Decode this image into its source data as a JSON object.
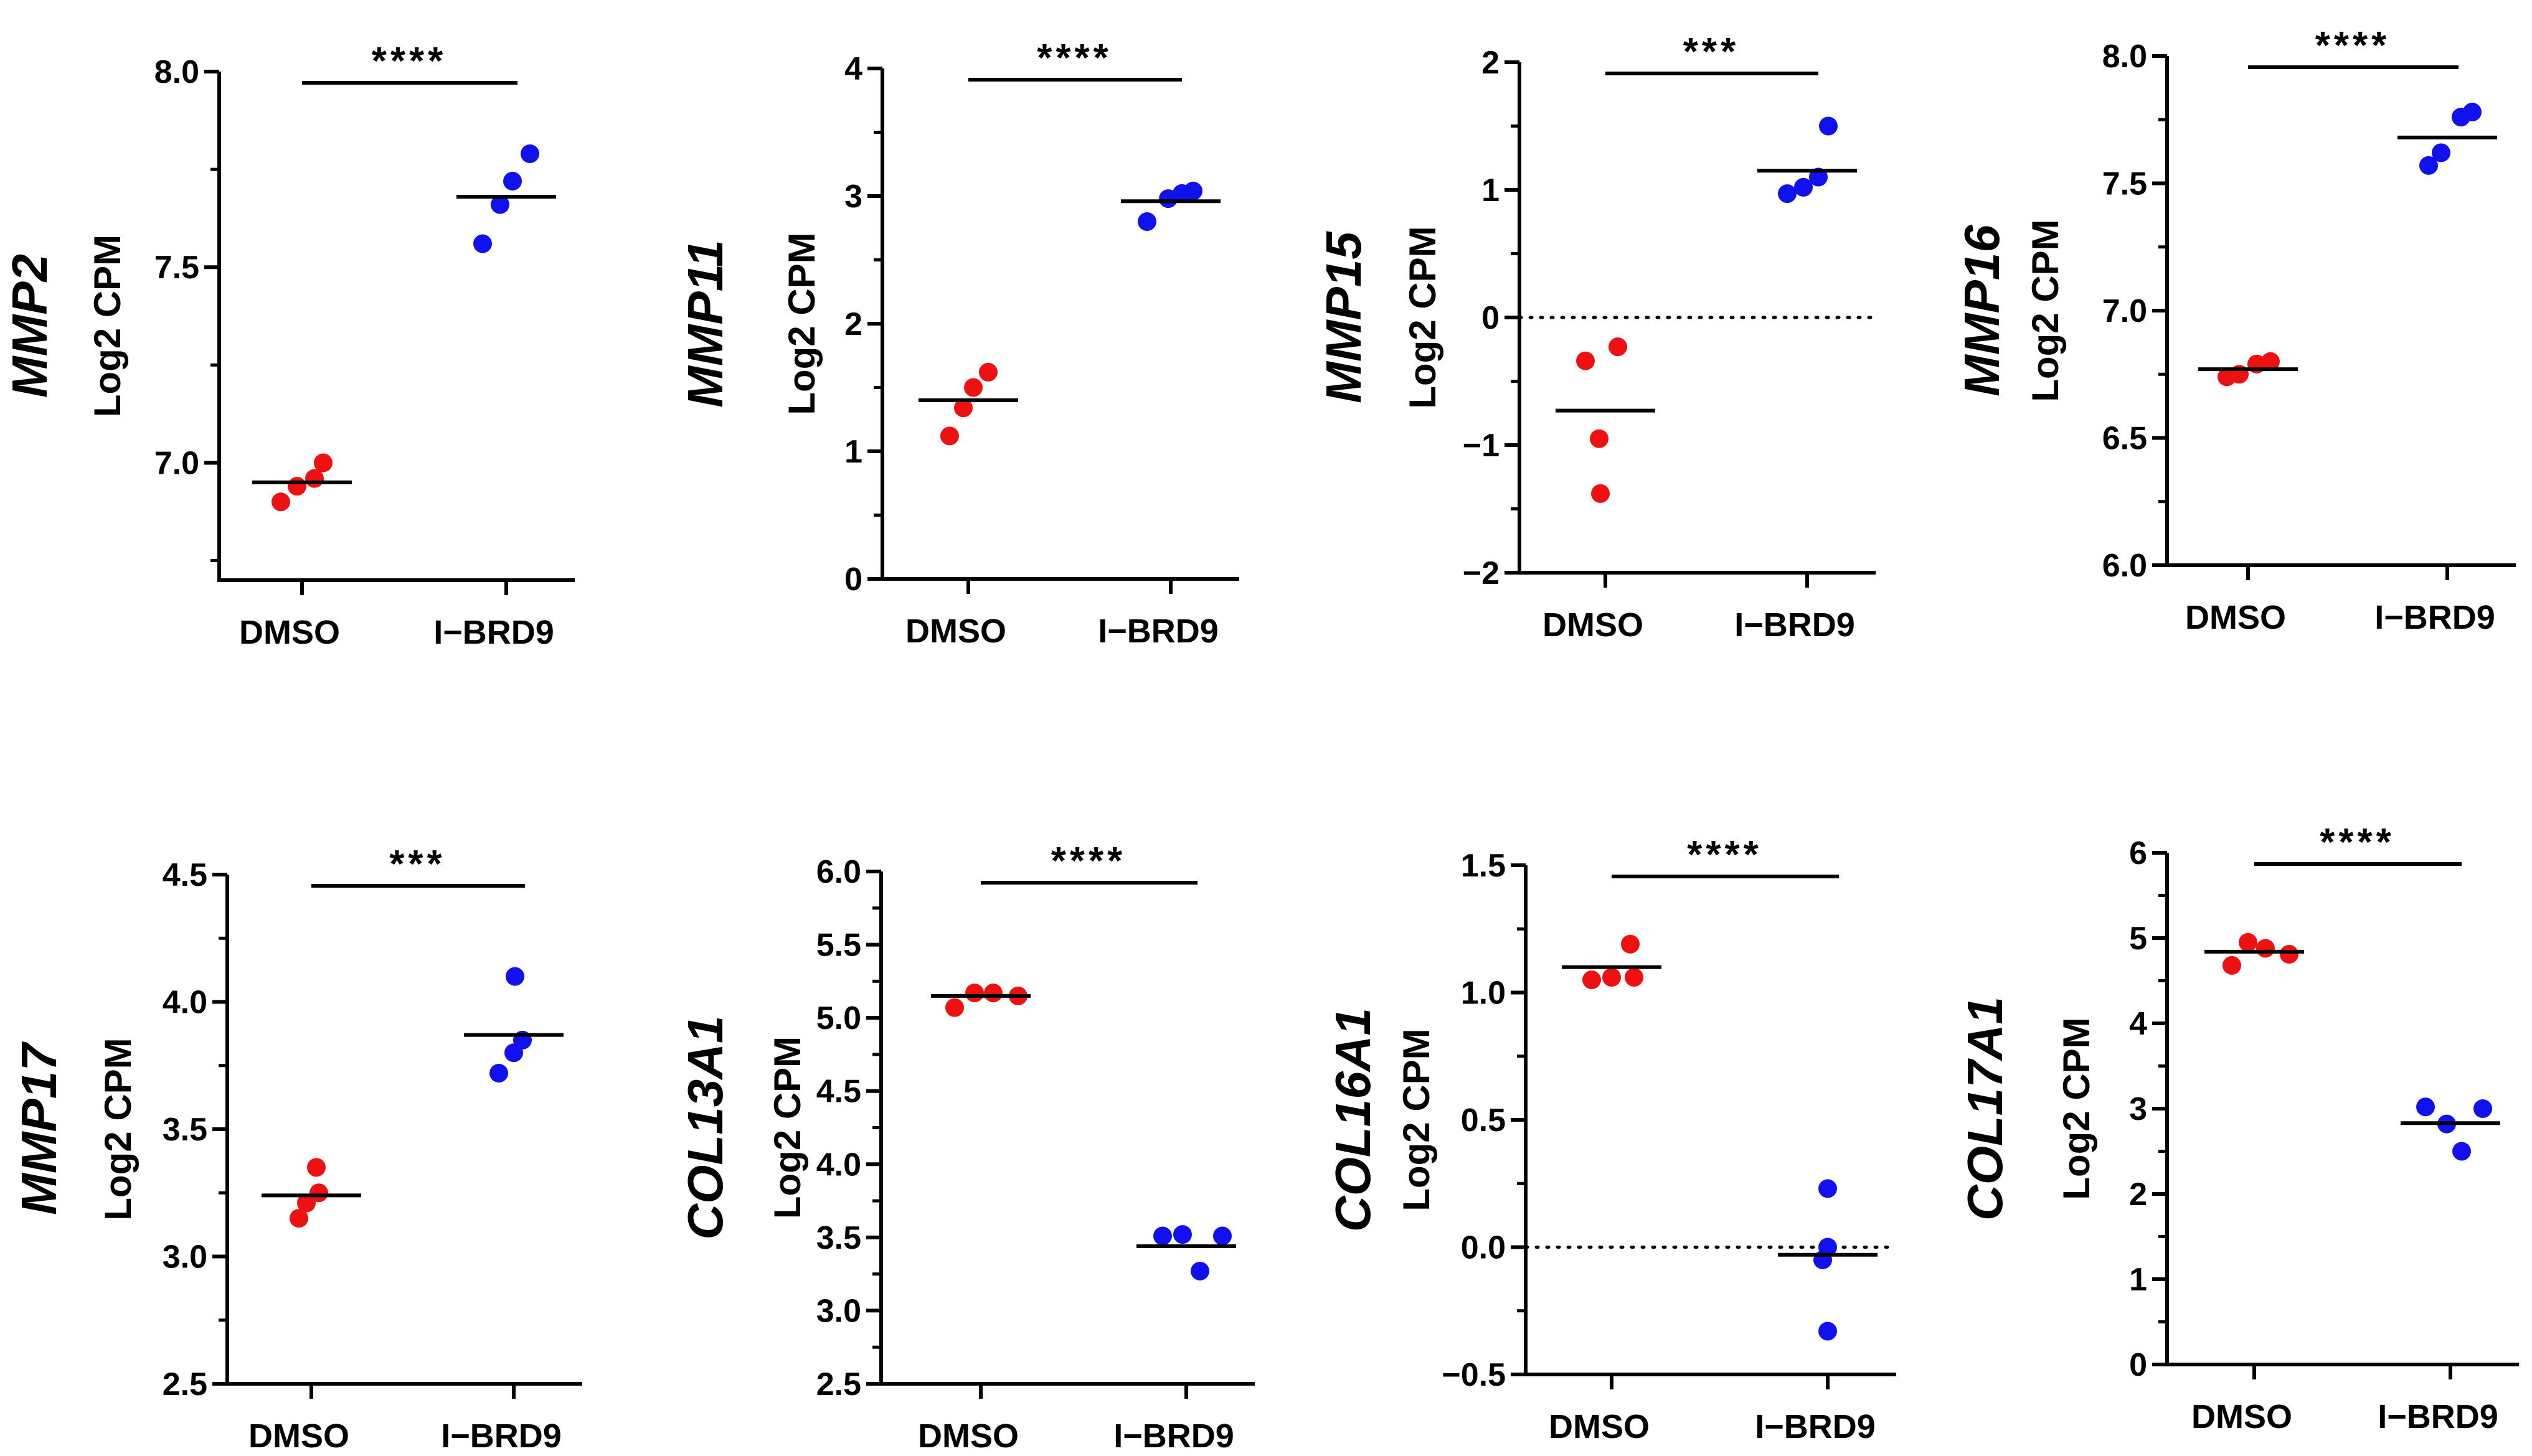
{
  "colors": {
    "dmso": "#ee1111",
    "ibrd9": "#1111ee",
    "axis": "#000000"
  },
  "chart_data": [
    {
      "type": "scatter",
      "gene": "MMP2",
      "ylabel": "Log2 CPM",
      "categories": [
        "DMSO",
        "I−BRD9"
      ],
      "ylim": [
        6.7,
        8.0
      ],
      "ticks": [
        7.0,
        7.5,
        8.0
      ],
      "tick_labels": [
        "7.0",
        "7.5",
        "8.0"
      ],
      "zero_line": false,
      "significance": "****",
      "series": [
        {
          "name": "DMSO",
          "values": [
            6.9,
            6.94,
            6.96,
            7.0
          ],
          "mean": 6.95
        },
        {
          "name": "I−BRD9",
          "values": [
            7.56,
            7.66,
            7.72,
            7.79
          ],
          "mean": 7.68
        }
      ]
    },
    {
      "type": "scatter",
      "gene": "MMP11",
      "ylabel": "Log2 CPM",
      "categories": [
        "DMSO",
        "I−BRD9"
      ],
      "ylim": [
        0,
        4
      ],
      "ticks": [
        0,
        1,
        2,
        3,
        4
      ],
      "tick_labels": [
        "0",
        "1",
        "2",
        "3",
        "4"
      ],
      "zero_line": false,
      "significance": "****",
      "series": [
        {
          "name": "DMSO",
          "values": [
            1.12,
            1.34,
            1.5,
            1.62
          ],
          "mean": 1.4
        },
        {
          "name": "I−BRD9",
          "values": [
            2.8,
            2.98,
            3.02,
            3.04
          ],
          "mean": 2.96
        }
      ]
    },
    {
      "type": "scatter",
      "gene": "MMP15",
      "ylabel": "Log2 CPM",
      "categories": [
        "DMSO",
        "I−BRD9"
      ],
      "ylim": [
        -2,
        2
      ],
      "ticks": [
        -2,
        -1,
        0,
        1,
        2
      ],
      "tick_labels": [
        "−2",
        "−1",
        "0",
        "1",
        "2"
      ],
      "zero_line": true,
      "significance": "***",
      "series": [
        {
          "name": "DMSO",
          "values": [
            -1.38,
            -0.95,
            -0.34,
            -0.23
          ],
          "mean": -0.73
        },
        {
          "name": "I−BRD9",
          "values": [
            0.97,
            1.02,
            1.1,
            1.5
          ],
          "mean": 1.15
        }
      ]
    },
    {
      "type": "scatter",
      "gene": "MMP16",
      "ylabel": "Log2 CPM",
      "categories": [
        "DMSO",
        "I−BRD9"
      ],
      "ylim": [
        6.0,
        8.0
      ],
      "ticks": [
        6.0,
        6.5,
        7.0,
        7.5,
        8.0
      ],
      "tick_labels": [
        "6.0",
        "6.5",
        "7.0",
        "7.5",
        "8.0"
      ],
      "zero_line": false,
      "significance": "****",
      "series": [
        {
          "name": "DMSO",
          "values": [
            6.74,
            6.75,
            6.79,
            6.8
          ],
          "mean": 6.77
        },
        {
          "name": "I−BRD9",
          "values": [
            7.57,
            7.62,
            7.76,
            7.78
          ],
          "mean": 7.68
        }
      ]
    },
    {
      "type": "scatter",
      "gene": "MMP17",
      "ylabel": "Log2 CPM",
      "categories": [
        "DMSO",
        "I−BRD9"
      ],
      "ylim": [
        2.5,
        4.5
      ],
      "ticks": [
        2.5,
        3.0,
        3.5,
        4.0,
        4.5
      ],
      "tick_labels": [
        "2.5",
        "3.0",
        "3.5",
        "4.0",
        "4.5"
      ],
      "zero_line": false,
      "significance": "***",
      "series": [
        {
          "name": "DMSO",
          "values": [
            3.15,
            3.21,
            3.25,
            3.35
          ],
          "mean": 3.24
        },
        {
          "name": "I−BRD9",
          "values": [
            3.72,
            3.8,
            3.85,
            4.1
          ],
          "mean": 3.87
        }
      ]
    },
    {
      "type": "scatter",
      "gene": "COL13A1",
      "ylabel": "Log2 CPM",
      "categories": [
        "DMSO",
        "I−BRD9"
      ],
      "ylim": [
        2.5,
        6.0
      ],
      "ticks": [
        2.5,
        3.0,
        3.5,
        4.0,
        4.5,
        5.0,
        5.5,
        6.0
      ],
      "tick_labels": [
        "2.5",
        "3.0",
        "3.5",
        "4.0",
        "4.5",
        "5.0",
        "5.5",
        "6.0"
      ],
      "zero_line": false,
      "significance": "****",
      "series": [
        {
          "name": "DMSO",
          "values": [
            5.07,
            5.17,
            5.17,
            5.15
          ],
          "mean": 5.15
        },
        {
          "name": "I−BRD9",
          "values": [
            3.51,
            3.52,
            3.27,
            3.51
          ],
          "mean": 3.44
        }
      ]
    },
    {
      "type": "scatter",
      "gene": "COL16A1",
      "ylabel": "Log2 CPM",
      "categories": [
        "DMSO",
        "I−BRD9"
      ],
      "ylim": [
        -0.5,
        1.5
      ],
      "ticks": [
        -0.5,
        0.0,
        0.5,
        1.0,
        1.5
      ],
      "tick_labels": [
        "−0.5",
        "0.0",
        "0.5",
        "1.0",
        "1.5"
      ],
      "zero_line": true,
      "significance": "****",
      "series": [
        {
          "name": "DMSO",
          "values": [
            1.05,
            1.06,
            1.19,
            1.06
          ],
          "mean": 1.1
        },
        {
          "name": "I−BRD9",
          "values": [
            0.0,
            -0.05,
            0.23,
            -0.33
          ],
          "mean": -0.03
        }
      ]
    },
    {
      "type": "scatter",
      "gene": "COL17A1",
      "ylabel": "Log2 CPM",
      "categories": [
        "DMSO",
        "I−BRD9"
      ],
      "ylim": [
        0,
        6
      ],
      "ticks": [
        0,
        1,
        2,
        3,
        4,
        5,
        6
      ],
      "tick_labels": [
        "0",
        "1",
        "2",
        "3",
        "4",
        "5",
        "6"
      ],
      "zero_line": false,
      "significance": "****",
      "series": [
        {
          "name": "DMSO",
          "values": [
            4.68,
            4.95,
            4.88,
            4.81
          ],
          "mean": 4.84
        },
        {
          "name": "I−BRD9",
          "values": [
            3.02,
            2.82,
            2.5,
            3.0
          ],
          "mean": 2.83
        }
      ]
    }
  ]
}
